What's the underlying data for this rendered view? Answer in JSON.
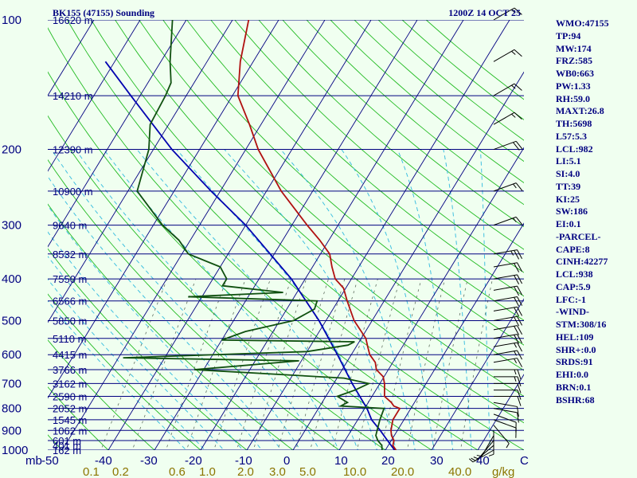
{
  "header": {
    "station": "BK155 (47155) Sounding",
    "time": "1200Z 14 OCT 25"
  },
  "colors": {
    "background": "#f0fff0",
    "isobar": "#000080",
    "isotherm": "#000080",
    "dry_adiabat": "#22bb22",
    "moist_adiabat": "#40c0e0",
    "mixing_ratio": "#607060",
    "temperature": "#b01010",
    "dewpoint": "#105010",
    "parcel": "#0000b0",
    "text": "#000080",
    "mixing_label": "#8b7500"
  },
  "indices": [
    "WMO:47155",
    "TP:94",
    "MW:174",
    "FRZ:585",
    "WB0:663",
    "PW:1.33",
    "RH:59.0",
    "MAXT:26.8",
    "TH:5698",
    "L57:5.3",
    "LCL:982",
    "LI:5.1",
    "SI:4.0",
    "TT:39",
    "KI:25",
    "SW:186",
    "EI:0.1",
    "-PARCEL-",
    "CAPE:8",
    "CINH:42277",
    "LCL:938",
    "CAP:5.9",
    "LFC:-1",
    "-WIND-",
    "STM:308/16",
    "HEL:109",
    "SHR+:0.0",
    "SRDS:91",
    "EHI:0.0",
    "BRN:0.1",
    "BSHR:68"
  ],
  "chart_data": {
    "type": "skew-t",
    "pressure_axis": {
      "unit": "mb",
      "range": [
        1000,
        100
      ],
      "log_scale": true,
      "ticks": [
        100,
        200,
        300,
        400,
        500,
        600,
        700,
        800,
        900,
        1000
      ]
    },
    "temperature_axis": {
      "unit": "C",
      "ticks": [
        -50,
        -40,
        -30,
        -20,
        -10,
        0,
        10,
        20,
        30,
        40
      ]
    },
    "temperature_tick_labels": [
      "mb",
      "-50",
      "-40",
      "-30",
      "-20",
      "-10",
      "0",
      "10",
      "20",
      "30",
      "40",
      "C"
    ],
    "mixing_ratio_labels": [
      "0.1",
      "0.2",
      "0.6",
      "1.0",
      "2.0",
      "3.0",
      "5.0",
      "10.0",
      "20.0",
      "40.0",
      "g/kg"
    ],
    "mixing_ratio_values": [
      0.1,
      0.2,
      0.6,
      1.0,
      2.0,
      3.0,
      5.0,
      10.0,
      20.0,
      40.0
    ],
    "heights": [
      {
        "p": 1000,
        "label": "162 m"
      },
      {
        "p": 975,
        "label": "401 m"
      },
      {
        "p": 950,
        "label": "601 m"
      },
      {
        "p": 900,
        "label": "1062 m"
      },
      {
        "p": 850,
        "label": "1545 m"
      },
      {
        "p": 800,
        "label": "2052 m"
      },
      {
        "p": 750,
        "label": "2590 m"
      },
      {
        "p": 700,
        "label": "3162 m"
      },
      {
        "p": 650,
        "label": "3766 m"
      },
      {
        "p": 600,
        "label": "4415 m"
      },
      {
        "p": 550,
        "label": "5110 m"
      },
      {
        "p": 500,
        "label": "5850 m"
      },
      {
        "p": 450,
        "label": "6566 m"
      },
      {
        "p": 400,
        "label": "7550 m"
      },
      {
        "p": 350,
        "label": "8532 m"
      },
      {
        "p": 300,
        "label": "9640 m"
      },
      {
        "p": 250,
        "label": "10900 m"
      },
      {
        "p": 200,
        "label": "12390 m"
      },
      {
        "p": 150,
        "label": "14210 m"
      },
      {
        "p": 100,
        "label": "16620 m"
      }
    ],
    "temperature_profile": [
      [
        1000,
        22.3
      ],
      [
        975,
        21.0
      ],
      [
        950,
        20.6
      ],
      [
        925,
        19.4
      ],
      [
        900,
        18.6
      ],
      [
        850,
        17.6
      ],
      [
        800,
        17.6
      ],
      [
        790,
        16.0
      ],
      [
        775,
        15.0
      ],
      [
        750,
        12.7
      ],
      [
        700,
        11.0
      ],
      [
        675,
        9.8
      ],
      [
        650,
        7.4
      ],
      [
        625,
        6.2
      ],
      [
        600,
        4.0
      ],
      [
        575,
        2.5
      ],
      [
        550,
        1.0
      ],
      [
        500,
        -3.9
      ],
      [
        450,
        -8.0
      ],
      [
        420,
        -10.5
      ],
      [
        400,
        -13.5
      ],
      [
        375,
        -15.8
      ],
      [
        350,
        -18.0
      ],
      [
        325,
        -22.0
      ],
      [
        300,
        -26.7
      ],
      [
        250,
        -36.8
      ],
      [
        200,
        -47.3
      ],
      [
        175,
        -52.5
      ],
      [
        150,
        -58.8
      ],
      [
        125,
        -62.8
      ],
      [
        100,
        -66.5
      ]
    ],
    "dewpoint_profile": [
      [
        1000,
        19.3
      ],
      [
        975,
        18.6
      ],
      [
        950,
        17.1
      ],
      [
        925,
        16.0
      ],
      [
        900,
        15.6
      ],
      [
        850,
        14.8
      ],
      [
        800,
        14.2
      ],
      [
        790,
        4.5
      ],
      [
        775,
        5.5
      ],
      [
        750,
        2.5
      ],
      [
        725,
        5.5
      ],
      [
        700,
        7.6
      ],
      [
        680,
        1.5
      ],
      [
        650,
        -32.0
      ],
      [
        620,
        -10.5
      ],
      [
        610,
        -49.0
      ],
      [
        590,
        -10.0
      ],
      [
        570,
        -2.0
      ],
      [
        560,
        -1.0
      ],
      [
        555,
        -30.0
      ],
      [
        530,
        -26.0
      ],
      [
        500,
        -17.0
      ],
      [
        470,
        -14.0
      ],
      [
        450,
        -14.5
      ],
      [
        440,
        -43.0
      ],
      [
        430,
        -23.0
      ],
      [
        415,
        -37.0
      ],
      [
        400,
        -37.0
      ],
      [
        375,
        -40.0
      ],
      [
        350,
        -48.6
      ],
      [
        325,
        -52.5
      ],
      [
        300,
        -58.0
      ],
      [
        250,
        -68.0
      ],
      [
        200,
        -71.0
      ],
      [
        175,
        -74.0
      ],
      [
        150,
        -74.5
      ],
      [
        140,
        -75.0
      ],
      [
        125,
        -78.0
      ],
      [
        100,
        -83.0
      ]
    ],
    "parcel_profile": [
      [
        1000,
        22.0
      ],
      [
        938,
        18.5
      ],
      [
        900,
        16.3
      ],
      [
        850,
        13.0
      ],
      [
        800,
        10.5
      ],
      [
        700,
        4.0
      ],
      [
        600,
        -3.0
      ],
      [
        500,
        -11.5
      ],
      [
        400,
        -23.0
      ],
      [
        300,
        -40.0
      ],
      [
        250,
        -52.0
      ],
      [
        200,
        -66.0
      ],
      [
        150,
        -82.0
      ],
      [
        125,
        -92.0
      ]
    ],
    "winds": [
      {
        "p": 1000,
        "dir": 240,
        "spd": 5
      },
      {
        "p": 975,
        "dir": 230,
        "spd": 5
      },
      {
        "p": 950,
        "dir": 220,
        "spd": 5
      },
      {
        "p": 925,
        "dir": 210,
        "spd": 5
      },
      {
        "p": 900,
        "dir": 180,
        "spd": 5
      },
      {
        "p": 875,
        "dir": 140,
        "spd": 5
      },
      {
        "p": 850,
        "dir": 110,
        "spd": 10
      },
      {
        "p": 825,
        "dir": 110,
        "spd": 10
      },
      {
        "p": 800,
        "dir": 100,
        "spd": 10
      },
      {
        "p": 775,
        "dir": 100,
        "spd": 10
      },
      {
        "p": 750,
        "dir": 90,
        "spd": 10
      },
      {
        "p": 725,
        "dir": 90,
        "spd": 10
      },
      {
        "p": 700,
        "dir": 90,
        "spd": 10
      },
      {
        "p": 675,
        "dir": 90,
        "spd": 15
      },
      {
        "p": 650,
        "dir": 90,
        "spd": 15
      },
      {
        "p": 625,
        "dir": 80,
        "spd": 15
      },
      {
        "p": 600,
        "dir": 80,
        "spd": 15
      },
      {
        "p": 575,
        "dir": 80,
        "spd": 15
      },
      {
        "p": 550,
        "dir": 80,
        "spd": 20
      },
      {
        "p": 525,
        "dir": 80,
        "spd": 20
      },
      {
        "p": 500,
        "dir": 80,
        "spd": 20
      },
      {
        "p": 475,
        "dir": 80,
        "spd": 20
      },
      {
        "p": 450,
        "dir": 80,
        "spd": 20
      },
      {
        "p": 425,
        "dir": 80,
        "spd": 20
      },
      {
        "p": 400,
        "dir": 80,
        "spd": 20
      },
      {
        "p": 375,
        "dir": 80,
        "spd": 20
      },
      {
        "p": 350,
        "dir": 80,
        "spd": 25
      },
      {
        "p": 300,
        "dir": 70,
        "spd": 15
      },
      {
        "p": 250,
        "dir": 70,
        "spd": 15
      },
      {
        "p": 200,
        "dir": 70,
        "spd": 20
      },
      {
        "p": 175,
        "dir": 60,
        "spd": 15
      },
      {
        "p": 150,
        "dir": 60,
        "spd": 15
      },
      {
        "p": 125,
        "dir": 60,
        "spd": 15
      },
      {
        "p": 100,
        "dir": 60,
        "spd": 15
      }
    ]
  }
}
